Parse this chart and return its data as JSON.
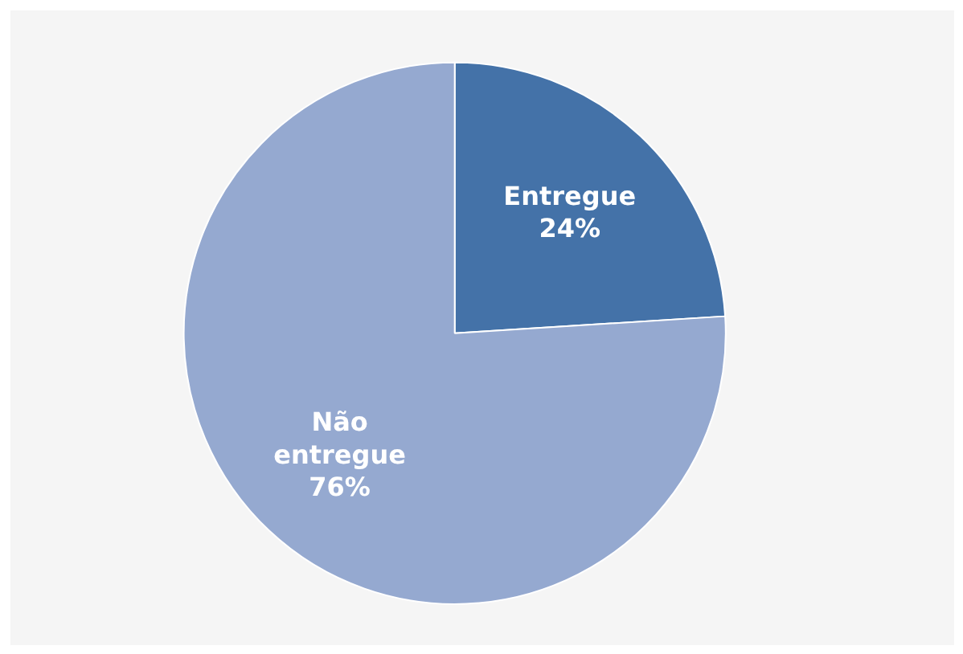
{
  "chart_data": {
    "type": "pie",
    "categories": [
      "Entregue",
      "Não entregue"
    ],
    "values": [
      24,
      76
    ],
    "colors": [
      "#4472a8",
      "#95a9d0"
    ],
    "value_labels": [
      "24%",
      "76%"
    ]
  }
}
